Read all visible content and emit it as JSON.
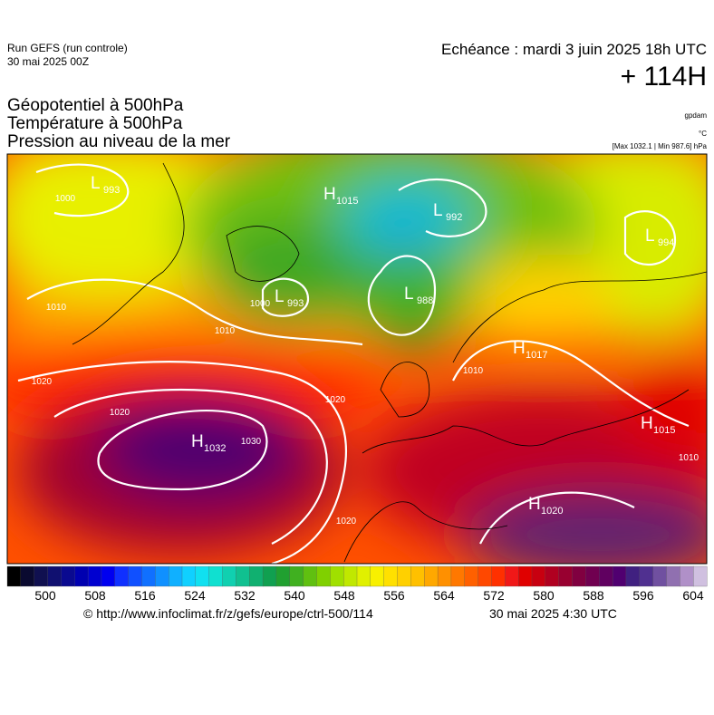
{
  "header": {
    "run": "Run GEFS (run controle)",
    "run_date": "30 mai 2025 00Z",
    "echeance": "Echéance : mardi 3 juin 2025 18h UTC",
    "lead": "+ 114H"
  },
  "titles": [
    "Géopotentiel à 500hPa",
    "Température à 500hPa",
    "Pression au niveau de la mer"
  ],
  "units": {
    "geopotential": "gpdam",
    "temperature": "°C",
    "pressure": "[Max 1032.1 | Min 987.6] hPa"
  },
  "centers": [
    {
      "kind": "L",
      "value": "993"
    },
    {
      "kind": "H",
      "value": "1015"
    },
    {
      "kind": "L",
      "value": "992"
    },
    {
      "kind": "L",
      "value": "994"
    },
    {
      "kind": "L",
      "value": "993"
    },
    {
      "kind": "L",
      "value": "988"
    },
    {
      "kind": "H",
      "value": "1017"
    },
    {
      "kind": "H",
      "value": "1032"
    },
    {
      "kind": "H",
      "value": "1015"
    },
    {
      "kind": "H",
      "value": "1020"
    }
  ],
  "isobar_labels": [
    "1000",
    "1010",
    "1010",
    "1020",
    "1020",
    "1020",
    "1030",
    "1020",
    "1000",
    "1010",
    "1010"
  ],
  "colorbar": {
    "ticks": [
      500,
      508,
      516,
      524,
      532,
      540,
      548,
      556,
      564,
      572,
      580,
      588,
      596,
      604
    ],
    "colors": [
      "#000000",
      "#0a0a30",
      "#101050",
      "#101070",
      "#0a0a90",
      "#0000b0",
      "#0000d0",
      "#0000f0",
      "#1030ff",
      "#1050ff",
      "#1070ff",
      "#1090ff",
      "#10b0ff",
      "#10d0ff",
      "#10e0f0",
      "#10e0d0",
      "#10d0b0",
      "#10c090",
      "#10b070",
      "#10a050",
      "#20a030",
      "#40b020",
      "#60c010",
      "#80d000",
      "#a0e000",
      "#c0e800",
      "#e0f000",
      "#f8f000",
      "#ffe000",
      "#ffd000",
      "#ffc000",
      "#ffa800",
      "#ff9000",
      "#ff7800",
      "#ff6000",
      "#ff4800",
      "#ff3000",
      "#f01818",
      "#e00000",
      "#c80010",
      "#b00020",
      "#980030",
      "#800040",
      "#700050",
      "#600060",
      "#500070",
      "#402080",
      "#503090",
      "#7050a0",
      "#9070b0",
      "#b090c8",
      "#d0c0e0"
    ]
  },
  "footer": {
    "source": "© http://www.infoclimat.fr/z/gefs/europe/ctrl-500/114",
    "issued": "30 mai 2025  4:30 UTC"
  }
}
